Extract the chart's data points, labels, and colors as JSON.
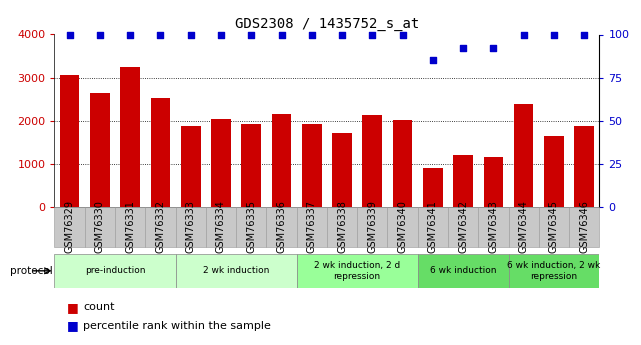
{
  "title": "GDS2308 / 1435752_s_at",
  "samples": [
    "GSM76329",
    "GSM76330",
    "GSM76331",
    "GSM76332",
    "GSM76333",
    "GSM76334",
    "GSM76335",
    "GSM76336",
    "GSM76337",
    "GSM76338",
    "GSM76339",
    "GSM76340",
    "GSM76341",
    "GSM76342",
    "GSM76343",
    "GSM76344",
    "GSM76345",
    "GSM76346"
  ],
  "counts": [
    3050,
    2650,
    3250,
    2520,
    1880,
    2050,
    1920,
    2150,
    1930,
    1720,
    2140,
    2020,
    900,
    1200,
    1150,
    2380,
    1650,
    1870
  ],
  "percentiles": [
    100,
    100,
    100,
    100,
    100,
    100,
    100,
    100,
    100,
    100,
    100,
    100,
    85,
    92,
    92,
    100,
    100,
    100
  ],
  "bar_color": "#cc0000",
  "dot_color": "#0000cc",
  "ylim_left": [
    0,
    4000
  ],
  "ylim_right": [
    0,
    100
  ],
  "yticks_left": [
    0,
    1000,
    2000,
    3000,
    4000
  ],
  "yticks_right": [
    0,
    25,
    50,
    75,
    100
  ],
  "bg_color": "#ffffff",
  "protocol_groups": [
    {
      "label": "pre-induction",
      "start": 0,
      "end": 3,
      "color": "#ccffcc"
    },
    {
      "label": "2 wk induction",
      "start": 4,
      "end": 7,
      "color": "#ccffcc"
    },
    {
      "label": "2 wk induction, 2 d\nrepression",
      "start": 8,
      "end": 11,
      "color": "#99ff99"
    },
    {
      "label": "6 wk induction",
      "start": 12,
      "end": 14,
      "color": "#66dd66"
    },
    {
      "label": "6 wk induction, 2 wk\nrepression",
      "start": 15,
      "end": 17,
      "color": "#66dd66"
    }
  ],
  "bar_color_red": "#cc0000",
  "dot_color_blue": "#0000cc",
  "title_fontsize": 10,
  "tick_fontsize": 7,
  "label_fontsize": 7,
  "bar_width": 0.65,
  "xtick_bg": "#c8c8c8",
  "xtick_border": "#999999"
}
